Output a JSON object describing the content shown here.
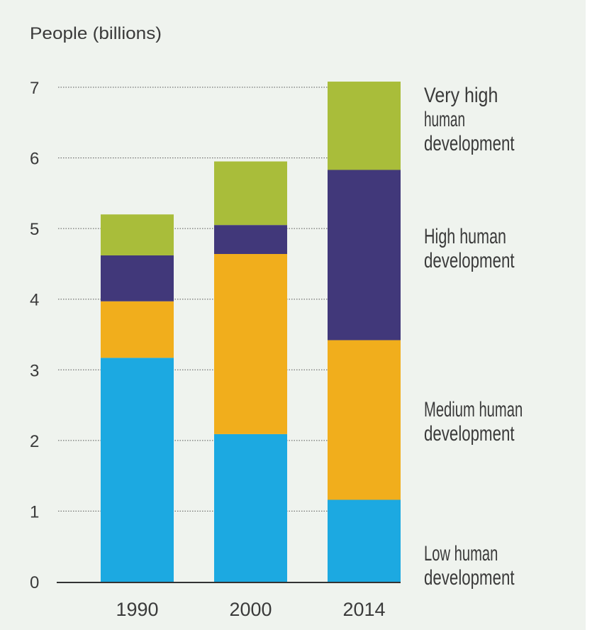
{
  "chart_data": {
    "type": "bar",
    "stacked": true,
    "ylabel": "People (billions)",
    "xlabel": "",
    "ylim": [
      0,
      7
    ],
    "yticks": [
      "0",
      "1",
      "2",
      "3",
      "4",
      "5",
      "6",
      "7"
    ],
    "grid": "dotted horizontal",
    "legend_placement": "right",
    "categories": [
      "1990",
      "2000",
      "2014"
    ],
    "series": [
      {
        "name": "Low human development",
        "color": "#1ca9e1",
        "values": [
          3.17,
          2.09,
          1.16
        ]
      },
      {
        "name": "Medium human development",
        "color": "#f1ae1c",
        "values": [
          0.8,
          2.55,
          2.26
        ]
      },
      {
        "name": "High human development",
        "color": "#41387a",
        "values": [
          0.65,
          0.41,
          2.41
        ]
      },
      {
        "name": "Very high human development",
        "color": "#a9bd3a",
        "values": [
          0.58,
          0.9,
          1.25
        ]
      }
    ],
    "legend_lines": [
      [
        "Low human",
        "development"
      ],
      [
        "Medium human",
        "development"
      ],
      [
        "High human",
        "development"
      ],
      [
        "Very high",
        "human",
        "development"
      ]
    ],
    "background": "#eff3ee"
  }
}
